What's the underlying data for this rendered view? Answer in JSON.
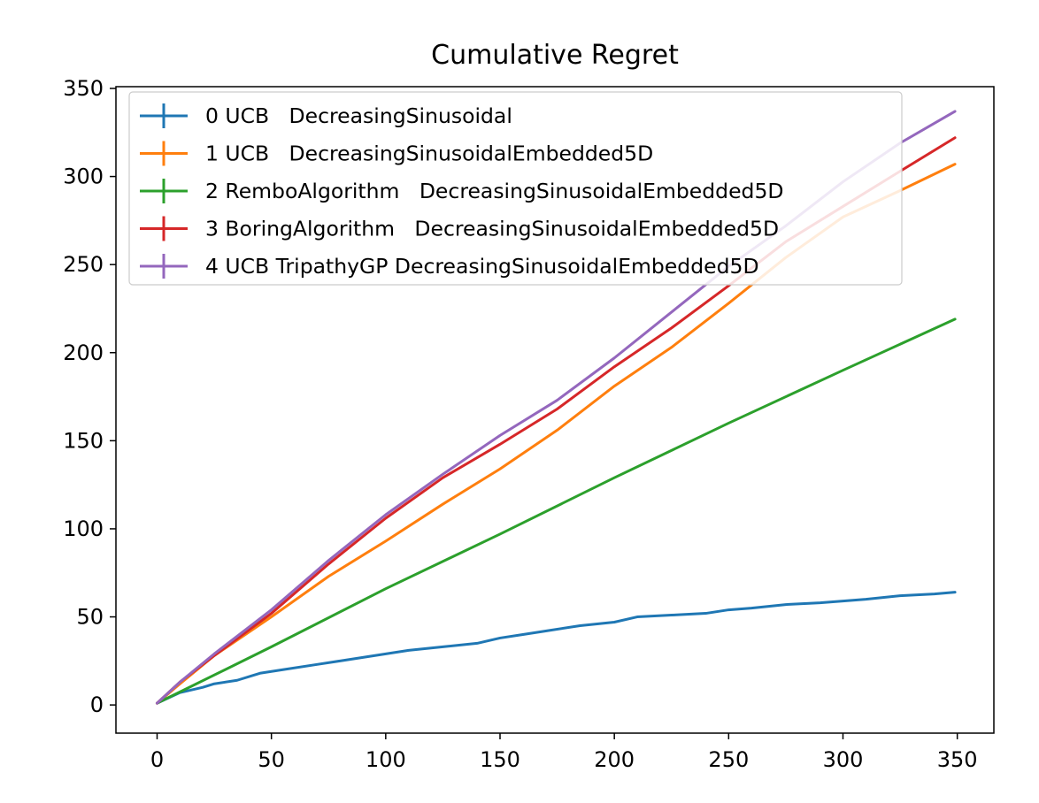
{
  "chart_data": {
    "type": "line",
    "title": "Cumulative Regret",
    "xlabel": "",
    "ylabel": "",
    "xlim": [
      -18,
      366
    ],
    "ylim": [
      -16,
      351
    ],
    "xticks": [
      0,
      50,
      100,
      150,
      200,
      250,
      300,
      350
    ],
    "yticks": [
      0,
      50,
      100,
      150,
      200,
      250,
      300,
      350
    ],
    "grid": false,
    "legend_position": "top-left",
    "series": [
      {
        "name": "0 UCB   DecreasingSinusoidal",
        "label": "0 UCB   DecreasingSinusoidal",
        "color": "#1f77b4",
        "x": [
          0,
          10,
          20,
          25,
          35,
          45,
          55,
          70,
          80,
          90,
          100,
          110,
          125,
          140,
          150,
          160,
          170,
          185,
          200,
          210,
          225,
          240,
          250,
          260,
          275,
          290,
          300,
          310,
          325,
          340,
          349
        ],
        "y": [
          1,
          7,
          10,
          12,
          14,
          18,
          20,
          23,
          25,
          27,
          29,
          31,
          33,
          35,
          38,
          40,
          42,
          45,
          47,
          50,
          51,
          52,
          54,
          55,
          57,
          58,
          59,
          60,
          62,
          63,
          64
        ]
      },
      {
        "name": "1 UCB   DecreasingSinusoidalEmbedded5D",
        "label": "1 UCB   DecreasingSinusoidalEmbedded5D",
        "color": "#ff7f0e",
        "x": [
          0,
          10,
          25,
          50,
          75,
          100,
          125,
          150,
          175,
          200,
          225,
          250,
          275,
          300,
          325,
          349
        ],
        "y": [
          1,
          12,
          28,
          50,
          73,
          93,
          114,
          134,
          156,
          181,
          203,
          228,
          254,
          277,
          292,
          307
        ]
      },
      {
        "name": "2 RemboAlgorithm   DecreasingSinusoidalEmbedded5D",
        "label": "2 RemboAlgorithm   DecreasingSinusoidalEmbedded5D",
        "color": "#2ca02c",
        "x": [
          0,
          50,
          100,
          150,
          200,
          250,
          300,
          349
        ],
        "y": [
          1,
          33,
          66,
          97,
          129,
          160,
          190,
          219
        ]
      },
      {
        "name": "3 BoringAlgorithm   DecreasingSinusoidalEmbedded5D",
        "label": "3 BoringAlgorithm   DecreasingSinusoidalEmbedded5D",
        "color": "#d62728",
        "x": [
          0,
          10,
          25,
          50,
          75,
          100,
          125,
          150,
          175,
          200,
          225,
          250,
          275,
          300,
          325,
          349
        ],
        "y": [
          1,
          13,
          28,
          52,
          80,
          106,
          129,
          148,
          168,
          192,
          214,
          238,
          263,
          283,
          303,
          322
        ]
      },
      {
        "name": "4 UCB TripathyGP DecreasingSinusoidalEmbedded5D",
        "label": "4 UCB TripathyGP DecreasingSinusoidalEmbedded5D",
        "color": "#9467bd",
        "x": [
          0,
          10,
          25,
          50,
          75,
          100,
          125,
          150,
          175,
          200,
          225,
          250,
          275,
          300,
          325,
          349
        ],
        "y": [
          1,
          13,
          29,
          54,
          82,
          108,
          131,
          153,
          173,
          197,
          223,
          249,
          272,
          297,
          319,
          337
        ]
      }
    ]
  }
}
